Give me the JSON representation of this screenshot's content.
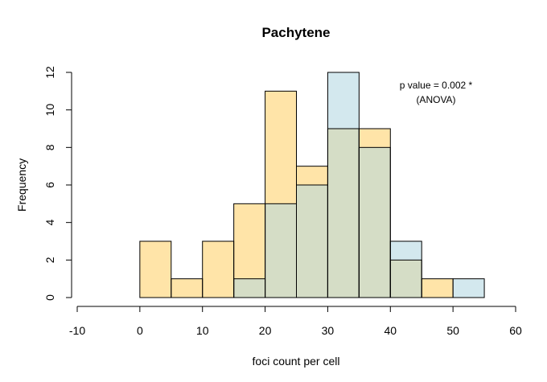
{
  "chart_data": {
    "type": "bar",
    "title": "Pachytene",
    "xlabel": "foci count per cell",
    "ylabel": "Frequency",
    "xlim": [
      -10,
      60
    ],
    "ylim": [
      0,
      12
    ],
    "x_ticks": [
      -10,
      0,
      10,
      20,
      30,
      40,
      50,
      60
    ],
    "y_ticks": [
      0,
      2,
      4,
      6,
      8,
      10,
      12
    ],
    "bin_width": 5,
    "series": [
      {
        "color": "#FFE4A8",
        "bins": [
          {
            "start": 0,
            "end": 5,
            "count": 3
          },
          {
            "start": 5,
            "end": 10,
            "count": 1
          },
          {
            "start": 10,
            "end": 15,
            "count": 3
          },
          {
            "start": 15,
            "end": 20,
            "count": 5
          },
          {
            "start": 20,
            "end": 25,
            "count": 11
          },
          {
            "start": 25,
            "end": 30,
            "count": 7
          },
          {
            "start": 30,
            "end": 35,
            "count": 9
          },
          {
            "start": 35,
            "end": 40,
            "count": 9
          },
          {
            "start": 40,
            "end": 45,
            "count": 2
          },
          {
            "start": 45,
            "end": 50,
            "count": 1
          }
        ]
      },
      {
        "color": "#D3E8EE",
        "bins": [
          {
            "start": 15,
            "end": 20,
            "count": 1
          },
          {
            "start": 20,
            "end": 25,
            "count": 5
          },
          {
            "start": 25,
            "end": 30,
            "count": 6
          },
          {
            "start": 30,
            "end": 35,
            "count": 12
          },
          {
            "start": 35,
            "end": 40,
            "count": 8
          },
          {
            "start": 40,
            "end": 45,
            "count": 3
          },
          {
            "start": 50,
            "end": 55,
            "count": 1
          }
        ]
      }
    ],
    "overlap_color": "#D5DDC6",
    "annotation": {
      "line1": "p value = 0.002 *",
      "line2": "(ANOVA)"
    },
    "grid": false,
    "legend": "none"
  }
}
